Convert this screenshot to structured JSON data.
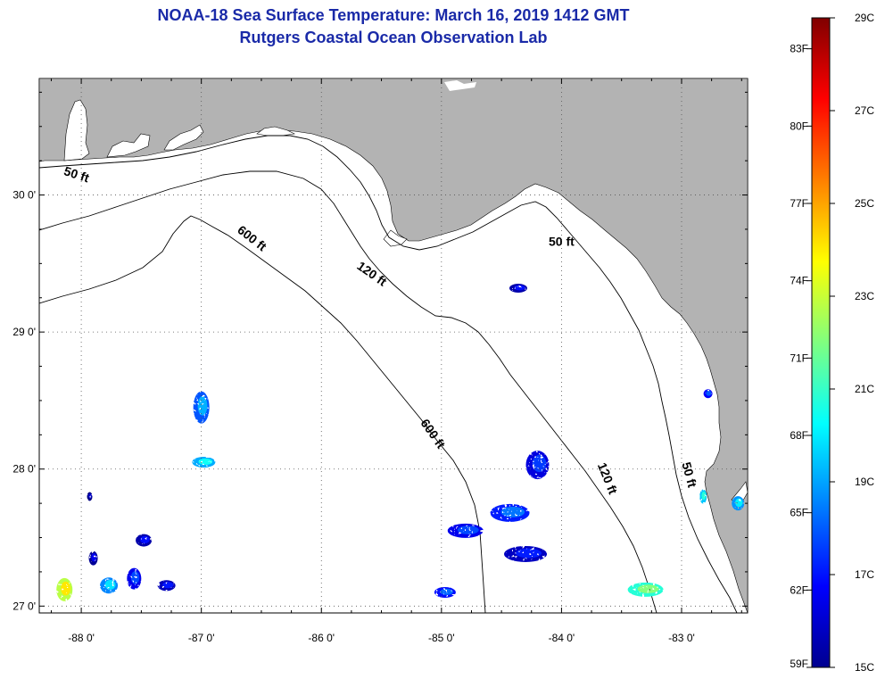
{
  "title": "NOAA-18 Sea Surface Temperature:  March 16, 2019 1412 GMT",
  "subtitle": "Rutgers Coastal Ocean Observation Lab",
  "map": {
    "lon_range": [
      -88.35,
      -82.45
    ],
    "lat_range": [
      26.95,
      30.85
    ],
    "lon_ticks": [
      {
        "value": -88,
        "label": "-88 0'"
      },
      {
        "value": -87,
        "label": "-87 0'"
      },
      {
        "value": -86,
        "label": "-86 0'"
      },
      {
        "value": -85,
        "label": "-85 0'"
      },
      {
        "value": -84,
        "label": "-84 0'"
      },
      {
        "value": -83,
        "label": "-83 0'"
      }
    ],
    "lat_ticks": [
      {
        "value": 30,
        "label": "30 0'"
      },
      {
        "value": 29,
        "label": "29 0'"
      },
      {
        "value": 28,
        "label": "28 0'"
      },
      {
        "value": 27,
        "label": "27 0'"
      }
    ],
    "contour_labels": [
      {
        "text": "50 ft",
        "lon": -88.05,
        "lat": 30.12,
        "angle": 18
      },
      {
        "text": "600 ft",
        "lon": -86.6,
        "lat": 29.66,
        "angle": 38
      },
      {
        "text": "120 ft",
        "lon": -85.6,
        "lat": 29.4,
        "angle": 35
      },
      {
        "text": "50 ft",
        "lon": -84.0,
        "lat": 29.63,
        "angle": 0
      },
      {
        "text": "600 ft",
        "lon": -85.1,
        "lat": 28.24,
        "angle": 55
      },
      {
        "text": "120 ft",
        "lon": -83.65,
        "lat": 27.92,
        "angle": 68
      },
      {
        "text": "50 ft",
        "lon": -82.97,
        "lat": 27.95,
        "angle": 75
      }
    ],
    "sst_patches": [
      {
        "lon": -88.14,
        "lat": 27.12,
        "rx": 9,
        "ry": 13,
        "temp_c": 23.5
      },
      {
        "lon": -87.77,
        "lat": 27.15,
        "rx": 10,
        "ry": 9,
        "temp_c": 19.3
      },
      {
        "lon": -87.56,
        "lat": 27.2,
        "rx": 8,
        "ry": 12,
        "temp_c": 17.2
      },
      {
        "lon": -87.29,
        "lat": 27.15,
        "rx": 10,
        "ry": 6,
        "temp_c": 16.5
      },
      {
        "lon": -87.0,
        "lat": 28.45,
        "rx": 9,
        "ry": 18,
        "temp_c": 18.6
      },
      {
        "lon": -86.98,
        "lat": 28.05,
        "rx": 13,
        "ry": 6,
        "temp_c": 19.8
      },
      {
        "lon": -87.48,
        "lat": 27.48,
        "rx": 9,
        "ry": 7,
        "temp_c": 16.3
      },
      {
        "lon": -87.9,
        "lat": 27.35,
        "rx": 5,
        "ry": 8,
        "temp_c": 16.0
      },
      {
        "lon": -87.93,
        "lat": 27.8,
        "rx": 3,
        "ry": 5,
        "temp_c": 15.6
      },
      {
        "lon": -84.2,
        "lat": 28.03,
        "rx": 13,
        "ry": 16,
        "temp_c": 17.0
      },
      {
        "lon": -84.43,
        "lat": 27.68,
        "rx": 22,
        "ry": 10,
        "temp_c": 17.8
      },
      {
        "lon": -84.8,
        "lat": 27.55,
        "rx": 20,
        "ry": 8,
        "temp_c": 17.2
      },
      {
        "lon": -84.3,
        "lat": 27.38,
        "rx": 24,
        "ry": 9,
        "temp_c": 16.6
      },
      {
        "lon": -84.97,
        "lat": 27.1,
        "rx": 12,
        "ry": 6,
        "temp_c": 17.6
      },
      {
        "lon": -83.3,
        "lat": 27.12,
        "rx": 20,
        "ry": 8,
        "temp_c": 21.5
      },
      {
        "lon": -84.36,
        "lat": 29.32,
        "rx": 10,
        "ry": 5,
        "temp_c": 16.3
      },
      {
        "lon": -82.78,
        "lat": 28.55,
        "rx": 5,
        "ry": 5,
        "temp_c": 17.4
      },
      {
        "lon": -82.53,
        "lat": 27.75,
        "rx": 7,
        "ry": 8,
        "temp_c": 19.5
      },
      {
        "lon": -82.82,
        "lat": 27.8,
        "rx": 4,
        "ry": 8,
        "temp_c": 20.2
      }
    ]
  },
  "colorbar": {
    "min_c": 15,
    "max_c": 29,
    "celsius_labels": [
      "29C",
      "27C",
      "25C",
      "23C",
      "21C",
      "19C",
      "17C",
      "15C"
    ],
    "fahrenheit_labels": [
      "83F",
      "80F",
      "77F",
      "74F",
      "71F",
      "68F",
      "65F",
      "62F",
      "59F"
    ],
    "fahrenheit_values": [
      83,
      80,
      77,
      74,
      71,
      68,
      65,
      62,
      59
    ]
  },
  "colors": {
    "land": "#b3b3b3",
    "water": "#ffffff",
    "title": "#1a2aa8"
  }
}
